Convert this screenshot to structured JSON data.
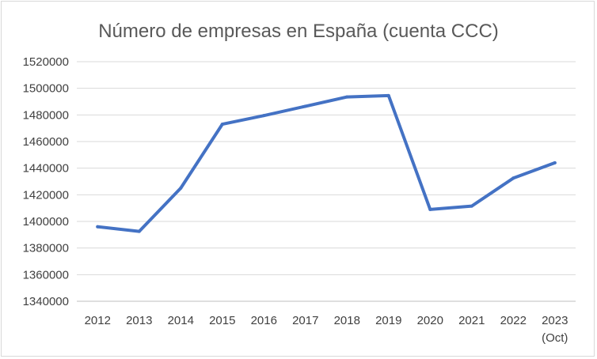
{
  "chart_data": {
    "type": "line",
    "title": "Número de empresas en España (cuenta CCC)",
    "xlabel": "",
    "ylabel": "",
    "categories": [
      "2012",
      "2013",
      "2014",
      "2015",
      "2016",
      "2017",
      "2018",
      "2019",
      "2020",
      "2021",
      "2022",
      "2023 (Oct)"
    ],
    "category_lines": [
      [
        "2012"
      ],
      [
        "2013"
      ],
      [
        "2014"
      ],
      [
        "2015"
      ],
      [
        "2016"
      ],
      [
        "2017"
      ],
      [
        "2018"
      ],
      [
        "2019"
      ],
      [
        "2020"
      ],
      [
        "2021"
      ],
      [
        "2022"
      ],
      [
        "2023",
        "(Oct)"
      ]
    ],
    "series": [
      {
        "values": [
          1396000,
          1392500,
          1425000,
          1473000,
          1479500,
          1486500,
          1493500,
          1494500,
          1409000,
          1411500,
          1432500,
          1444000
        ],
        "color": "#4472c4"
      }
    ],
    "ylim": [
      1340000,
      1520000
    ],
    "yticks": [
      "1340000",
      "1360000",
      "1380000",
      "1400000",
      "1420000",
      "1440000",
      "1460000",
      "1480000",
      "1500000",
      "1520000"
    ],
    "grid": true,
    "legend": "none",
    "colors": {
      "grid": "#d9d9d9",
      "axis": "#bfbfbf",
      "text": "#404040",
      "title": "#595959"
    }
  }
}
